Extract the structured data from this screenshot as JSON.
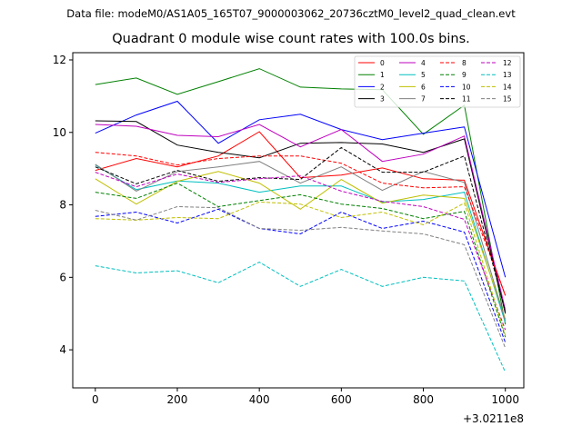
{
  "header": {
    "data_file": "Data file: modeM0/AS1A05_165T07_9000003062_20736cztM0_level2_quad_clean.evt"
  },
  "chart_data": {
    "type": "line",
    "title": "Quadrant 0 module wise count rates with 100.0s bins.",
    "xlabel": "",
    "ylabel": "",
    "x_offset_label": "+3.0211e8",
    "x": [
      0,
      100,
      200,
      300,
      400,
      500,
      600,
      700,
      800,
      900,
      1000
    ],
    "xticks": [
      0,
      200,
      400,
      600,
      800,
      1000
    ],
    "xlim": [
      -55,
      1045
    ],
    "yticks": [
      4,
      6,
      8,
      10,
      12
    ],
    "ylim": [
      2.95,
      12.2
    ],
    "grid": false,
    "legend": {
      "position": "top-right",
      "columns": 4
    },
    "series": [
      {
        "name": "0",
        "color": "#ff0000",
        "dash": "solid",
        "values": [
          8.95,
          9.28,
          9.05,
          9.35,
          10.02,
          8.75,
          8.82,
          9.02,
          8.72,
          8.68,
          5.5
        ]
      },
      {
        "name": "1",
        "color": "#008000",
        "dash": "solid",
        "values": [
          11.32,
          11.5,
          11.05,
          11.4,
          11.76,
          11.25,
          11.2,
          11.18,
          9.95,
          10.75,
          4.7
        ]
      },
      {
        "name": "2",
        "color": "#0000ff",
        "dash": "solid",
        "values": [
          9.98,
          10.48,
          10.86,
          9.7,
          10.35,
          10.5,
          10.08,
          9.8,
          9.98,
          10.15,
          6.0
        ]
      },
      {
        "name": "3",
        "color": "#000000",
        "dash": "solid",
        "values": [
          10.32,
          10.3,
          9.65,
          9.45,
          9.3,
          9.7,
          9.72,
          9.68,
          9.45,
          9.82,
          5.0
        ]
      },
      {
        "name": "4",
        "color": "#bf00bf",
        "dash": "solid",
        "values": [
          10.22,
          10.17,
          9.92,
          9.88,
          10.22,
          9.6,
          10.08,
          9.2,
          9.4,
          9.9,
          5.1
        ]
      },
      {
        "name": "5",
        "color": "#00bfbf",
        "dash": "solid",
        "values": [
          9.1,
          8.42,
          8.66,
          8.6,
          8.35,
          8.52,
          8.52,
          8.08,
          8.15,
          8.35,
          4.75
        ]
      },
      {
        "name": "6",
        "color": "#bfbf00",
        "dash": "solid",
        "values": [
          8.72,
          8.02,
          8.65,
          8.92,
          8.6,
          7.88,
          8.7,
          8.05,
          8.27,
          8.18,
          4.85
        ]
      },
      {
        "name": "7",
        "color": "#808080",
        "dash": "solid",
        "values": [
          9.12,
          8.38,
          8.92,
          9.05,
          9.2,
          8.6,
          9.05,
          8.4,
          8.92,
          8.62,
          4.8
        ]
      },
      {
        "name": "8",
        "color": "#ff0000",
        "dash": "dashed",
        "values": [
          9.45,
          9.35,
          9.1,
          9.28,
          9.35,
          9.35,
          9.15,
          8.6,
          8.47,
          8.5,
          5.5
        ]
      },
      {
        "name": "9",
        "color": "#008000",
        "dash": "dashed",
        "values": [
          8.35,
          8.18,
          8.6,
          7.95,
          8.12,
          8.28,
          8.02,
          7.9,
          7.62,
          7.82,
          4.35
        ]
      },
      {
        "name": "10",
        "color": "#0000ff",
        "dash": "dashed",
        "values": [
          7.68,
          7.8,
          7.5,
          7.88,
          7.35,
          7.2,
          7.8,
          7.35,
          7.55,
          7.25,
          4.2
        ]
      },
      {
        "name": "11",
        "color": "#000000",
        "dash": "dashed",
        "values": [
          9.05,
          8.58,
          8.95,
          8.65,
          8.75,
          8.7,
          9.58,
          8.9,
          8.9,
          9.35,
          5.05
        ]
      },
      {
        "name": "12",
        "color": "#bf00bf",
        "dash": "dashed",
        "values": [
          8.9,
          8.5,
          8.85,
          8.62,
          8.72,
          8.8,
          8.38,
          8.1,
          7.95,
          7.6,
          4.55
        ]
      },
      {
        "name": "13",
        "color": "#00bfbf",
        "dash": "dashed",
        "values": [
          6.32,
          6.12,
          6.18,
          5.85,
          6.42,
          5.75,
          6.22,
          5.75,
          6.0,
          5.9,
          3.38
        ]
      },
      {
        "name": "14",
        "color": "#bfbf00",
        "dash": "dashed",
        "values": [
          7.62,
          7.58,
          7.65,
          7.62,
          8.08,
          8.02,
          7.65,
          7.8,
          7.45,
          8.05,
          4.4
        ]
      },
      {
        "name": "15",
        "color": "#808080",
        "dash": "dashed",
        "values": [
          7.85,
          7.58,
          7.95,
          7.92,
          7.35,
          7.3,
          7.38,
          7.28,
          7.2,
          6.9,
          4.05
        ]
      }
    ]
  }
}
